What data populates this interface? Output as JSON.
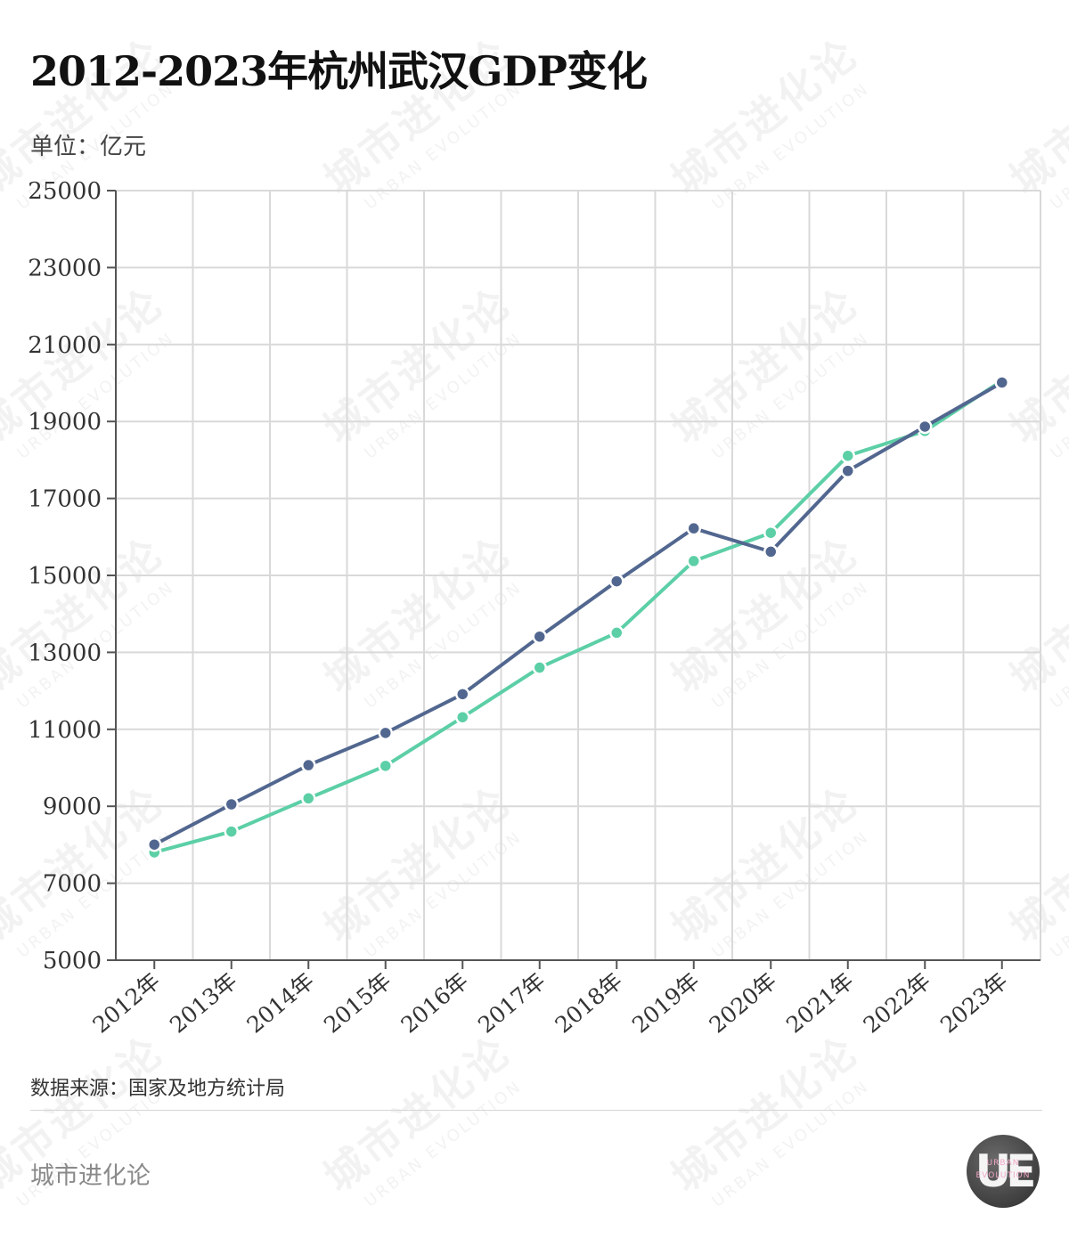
{
  "header": {
    "title": "2012-2023年杭州武汉GDP变化",
    "unit": "单位：亿元"
  },
  "footer": {
    "source": "数据来源：国家及地方统计局",
    "brand": "城市进化论",
    "logo_mark": "UE",
    "logo_text_1": "URBAN",
    "logo_text_2": "EVOLUTION"
  },
  "watermark": {
    "text": "城市进化论",
    "subtext": "URBAN EVOLUTION"
  },
  "chart_data": {
    "type": "line",
    "categories": [
      "2012年",
      "2013年",
      "2014年",
      "2015年",
      "2016年",
      "2017年",
      "2018年",
      "2019年",
      "2020年",
      "2021年",
      "2022年",
      "2023年"
    ],
    "series": [
      {
        "color": "#52678f",
        "values": [
          8004,
          9051,
          10069,
          10906,
          11913,
          13410,
          14847,
          16223,
          15616,
          17717,
          18866,
          20012
        ]
      },
      {
        "color": "#5ccfa6",
        "values": [
          7802,
          8343,
          9206,
          10050,
          11314,
          12603,
          13509,
          15373,
          16106,
          18109,
          18753,
          20059
        ]
      }
    ],
    "ylim": [
      5000,
      25000
    ],
    "yticks": [
      5000,
      7000,
      9000,
      11000,
      13000,
      15000,
      17000,
      19000,
      21000,
      23000,
      25000
    ],
    "grid": true,
    "legend": "none"
  }
}
